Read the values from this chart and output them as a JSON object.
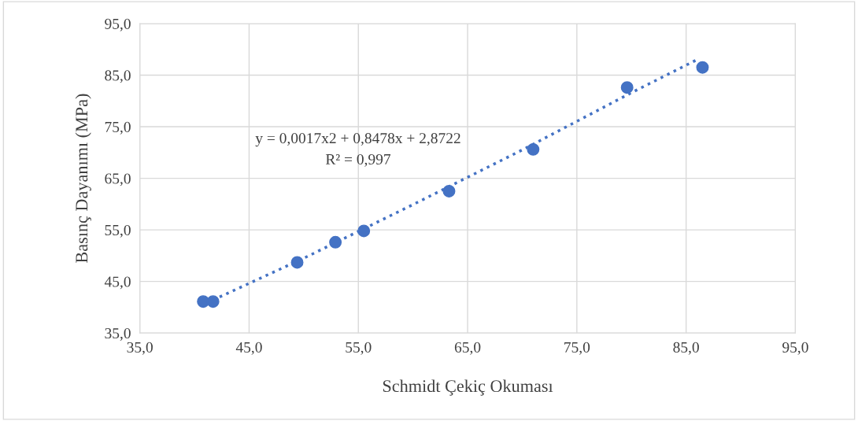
{
  "chart_data": {
    "type": "scatter",
    "xlabel": "Schmidt Çekiç Okuması",
    "ylabel": "Basınç Dayanımı (MPa)",
    "xlim": [
      35,
      95
    ],
    "ylim": [
      35,
      95
    ],
    "xticks": [
      {
        "value": 35,
        "label": "35,0"
      },
      {
        "value": 45,
        "label": "45,0"
      },
      {
        "value": 55,
        "label": "55,0"
      },
      {
        "value": 65,
        "label": "65,0"
      },
      {
        "value": 75,
        "label": "75,0"
      },
      {
        "value": 85,
        "label": "85,0"
      },
      {
        "value": 95,
        "label": "95,0"
      }
    ],
    "yticks": [
      {
        "value": 35,
        "label": "35,0"
      },
      {
        "value": 45,
        "label": "45,0"
      },
      {
        "value": 55,
        "label": "55,0"
      },
      {
        "value": 65,
        "label": "65,0"
      },
      {
        "value": 75,
        "label": "75,0"
      },
      {
        "value": 85,
        "label": "85,0"
      },
      {
        "value": 95,
        "label": "95,0"
      }
    ],
    "grid": true,
    "legend": false,
    "series": [
      {
        "color": "#4472c4",
        "marker": "circle",
        "x": [
          40.8,
          41.7,
          49.4,
          52.9,
          55.5,
          63.3,
          71.0,
          79.6,
          86.5
        ],
        "values": [
          41.1,
          41.1,
          48.7,
          52.6,
          54.8,
          62.5,
          70.6,
          82.6,
          86.5
        ]
      },
      {
        "type": "line",
        "color": "#4472c4",
        "marker": "none",
        "line_style": "dotted",
        "x": [
          41.7,
          50,
          60,
          70,
          80,
          86
        ],
        "values": [
          41.4,
          49.5,
          59.9,
          70.5,
          81.6,
          88.0
        ]
      }
    ],
    "annotations": [
      "y = 0,0017x2 + 0,8478x + 2,8722",
      "R² = 0,997"
    ]
  }
}
